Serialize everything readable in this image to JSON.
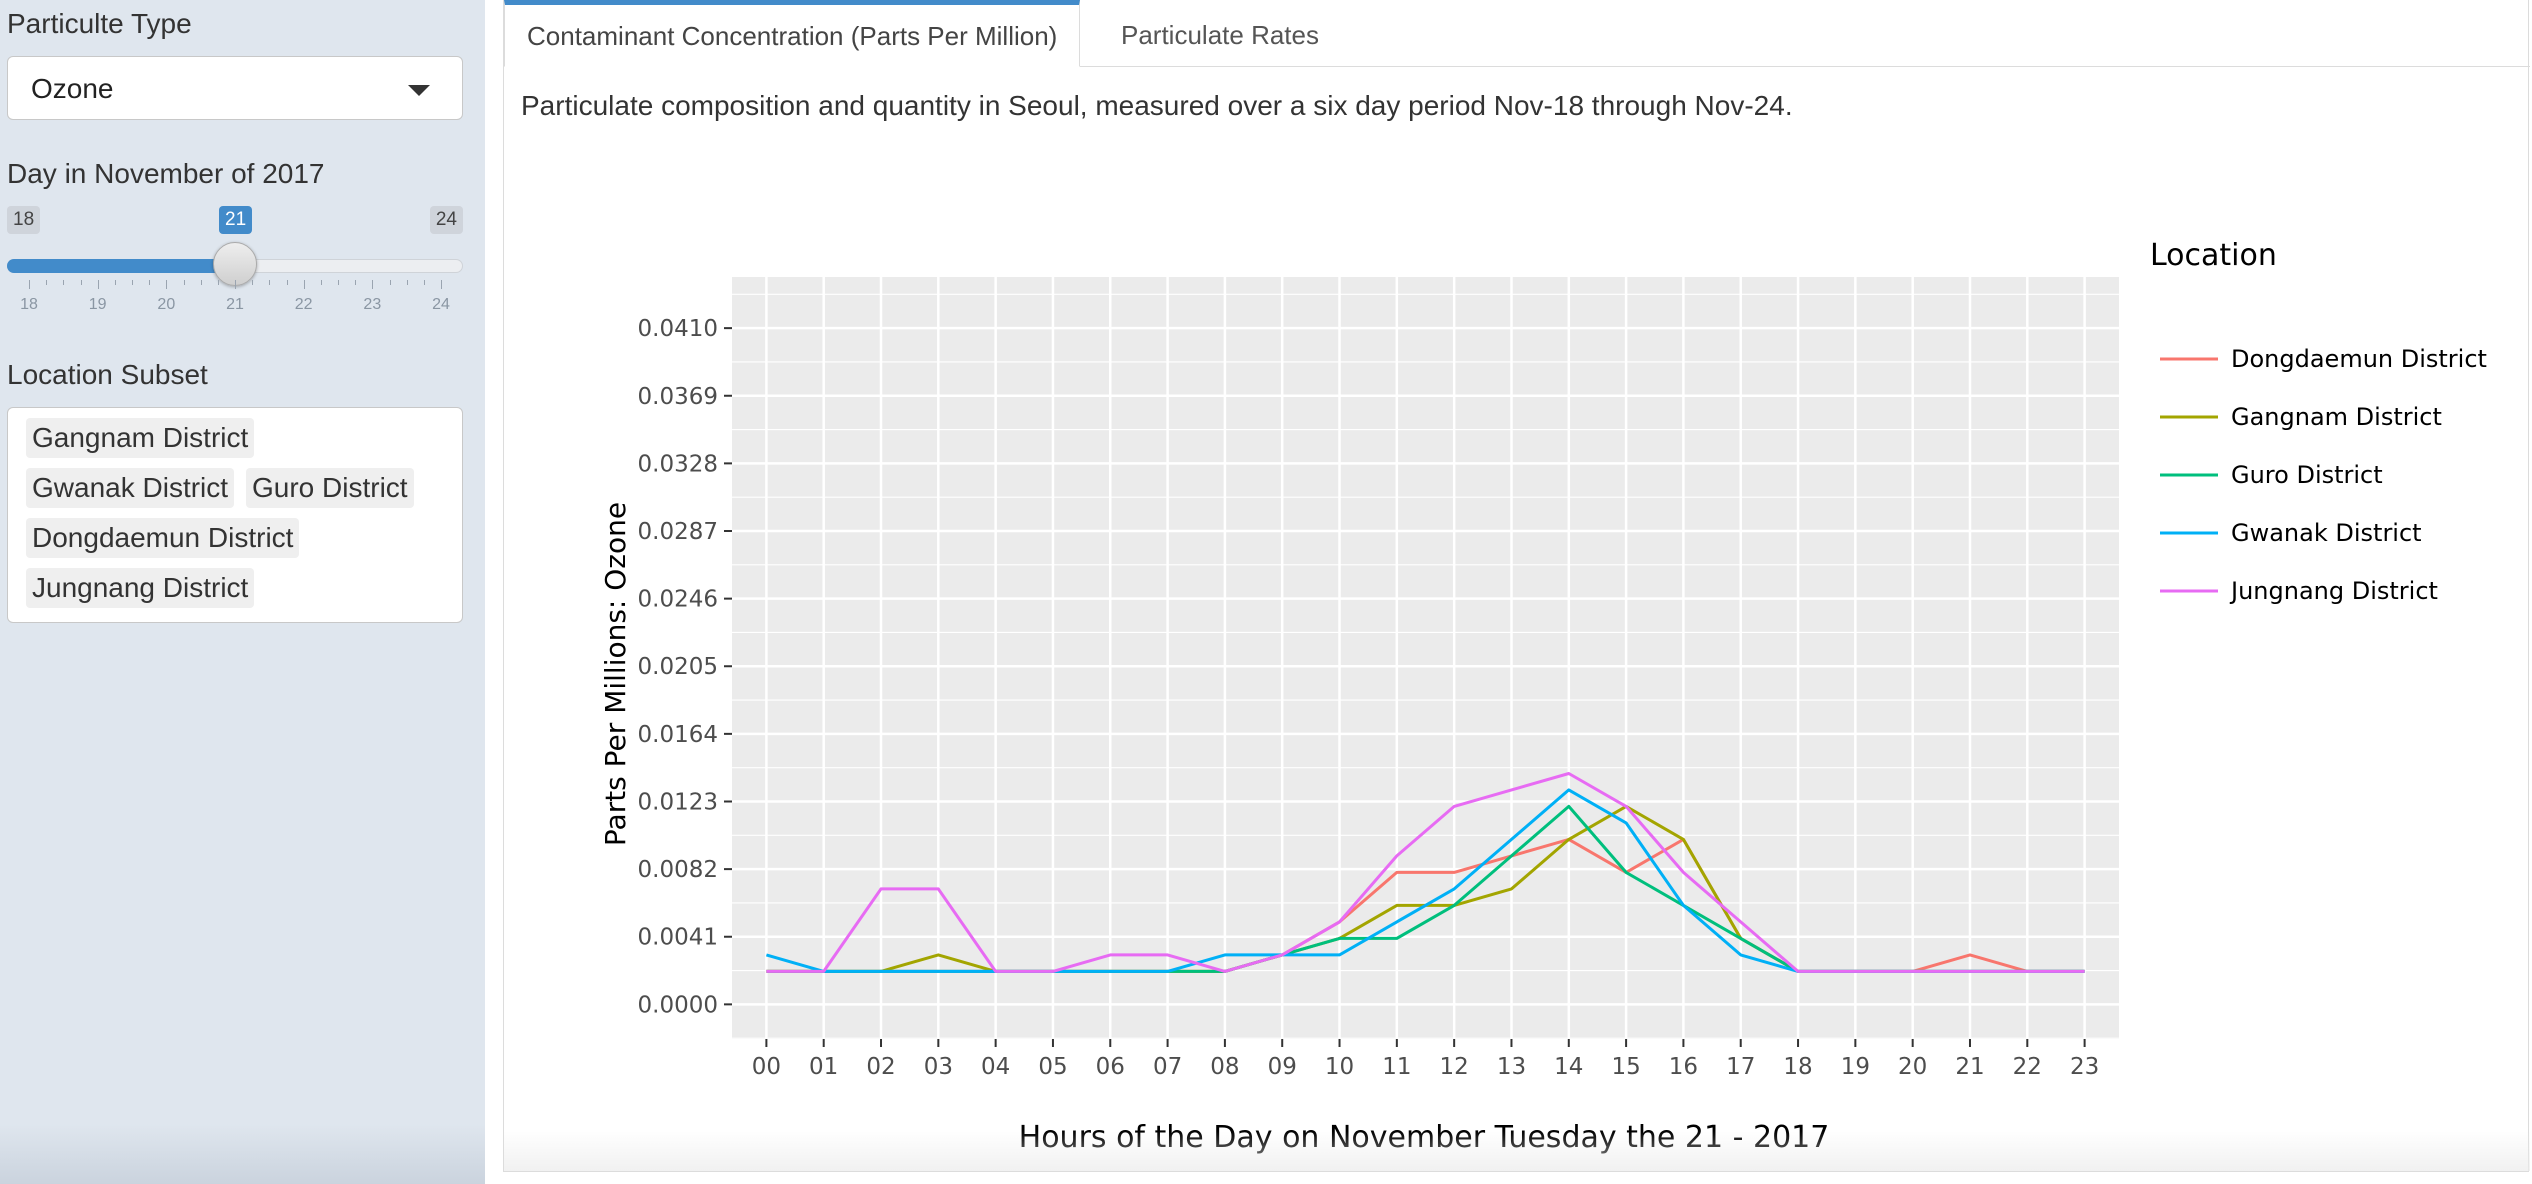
{
  "sidebar": {
    "particulate_label": "Particulte Type",
    "particulate_value": "Ozone",
    "day_label": "Day in November of 2017",
    "slider": {
      "min": 18,
      "max": 24,
      "value": 21,
      "ticks": [
        "18",
        "19",
        "20",
        "21",
        "22",
        "23",
        "24"
      ]
    },
    "subset_label": "Location Subset",
    "subset_chips": [
      "Gangnam District",
      "Gwanak District",
      "Guro District",
      "Dongdaemun District",
      "Jungnang District"
    ]
  },
  "tabs": [
    {
      "label": "Contaminant Concentration (Parts Per Million)",
      "active": true
    },
    {
      "label": "Particulate Rates",
      "active": false
    }
  ],
  "description": "Particulate composition and quantity in Seoul, measured over a six day period Nov-18 through Nov-24.",
  "colors": {
    "accent": "#428bca",
    "panel_bg": "#ebebeb",
    "Dongdaemun District": "#f8766d",
    "Gangnam District": "#a3a500",
    "Guro District": "#00bf7d",
    "Gwanak District": "#00b0f6",
    "Jungnang District": "#e76bf3"
  },
  "chart_data": {
    "type": "line",
    "title": "",
    "xlabel": "Hours of the Day on November Tuesday the 21 - 2017",
    "ylabel": "Parts Per Millions: Ozone",
    "legend_title": "Location",
    "legend_position": "right",
    "grid": true,
    "x": [
      "00",
      "01",
      "02",
      "03",
      "04",
      "05",
      "06",
      "07",
      "08",
      "09",
      "10",
      "11",
      "12",
      "13",
      "14",
      "15",
      "16",
      "17",
      "18",
      "19",
      "20",
      "21",
      "22",
      "23"
    ],
    "yticks": [
      "0.0000",
      "0.0041",
      "0.0082",
      "0.0123",
      "0.0164",
      "0.0205",
      "0.0246",
      "0.0287",
      "0.0328",
      "0.0369",
      "0.0410"
    ],
    "ylim": [
      -0.0021,
      0.0441
    ],
    "series": [
      {
        "name": "Dongdaemun District",
        "values": [
          0.002,
          0.002,
          0.002,
          0.002,
          0.002,
          0.002,
          0.002,
          0.002,
          0.002,
          0.003,
          0.005,
          0.008,
          0.008,
          0.009,
          0.01,
          0.008,
          0.01,
          0.004,
          0.002,
          0.002,
          0.002,
          0.003,
          0.002,
          0.002
        ]
      },
      {
        "name": "Gangnam District",
        "values": [
          0.002,
          0.002,
          0.002,
          0.003,
          0.002,
          0.002,
          0.002,
          0.002,
          0.002,
          0.003,
          0.004,
          0.006,
          0.006,
          0.007,
          0.01,
          0.012,
          0.01,
          0.004,
          0.002,
          0.002,
          0.002,
          0.002,
          0.002,
          0.002
        ]
      },
      {
        "name": "Guro District",
        "values": [
          0.002,
          0.002,
          0.002,
          0.002,
          0.002,
          0.002,
          0.002,
          0.002,
          0.002,
          0.003,
          0.004,
          0.004,
          0.006,
          0.009,
          0.012,
          0.008,
          0.006,
          0.004,
          0.002,
          0.002,
          0.002,
          0.002,
          0.002,
          0.002
        ]
      },
      {
        "name": "Gwanak District",
        "values": [
          0.003,
          0.002,
          0.002,
          0.002,
          0.002,
          0.002,
          0.002,
          0.002,
          0.003,
          0.003,
          0.003,
          0.005,
          0.007,
          0.01,
          0.013,
          0.011,
          0.006,
          0.003,
          0.002,
          0.002,
          0.002,
          0.002,
          0.002,
          0.002
        ]
      },
      {
        "name": "Jungnang District",
        "values": [
          0.002,
          0.002,
          0.007,
          0.007,
          0.002,
          0.002,
          0.003,
          0.003,
          0.002,
          0.003,
          0.005,
          0.009,
          0.012,
          0.013,
          0.014,
          0.012,
          0.008,
          0.005,
          0.002,
          0.002,
          0.002,
          0.002,
          0.002,
          0.002
        ]
      }
    ]
  }
}
